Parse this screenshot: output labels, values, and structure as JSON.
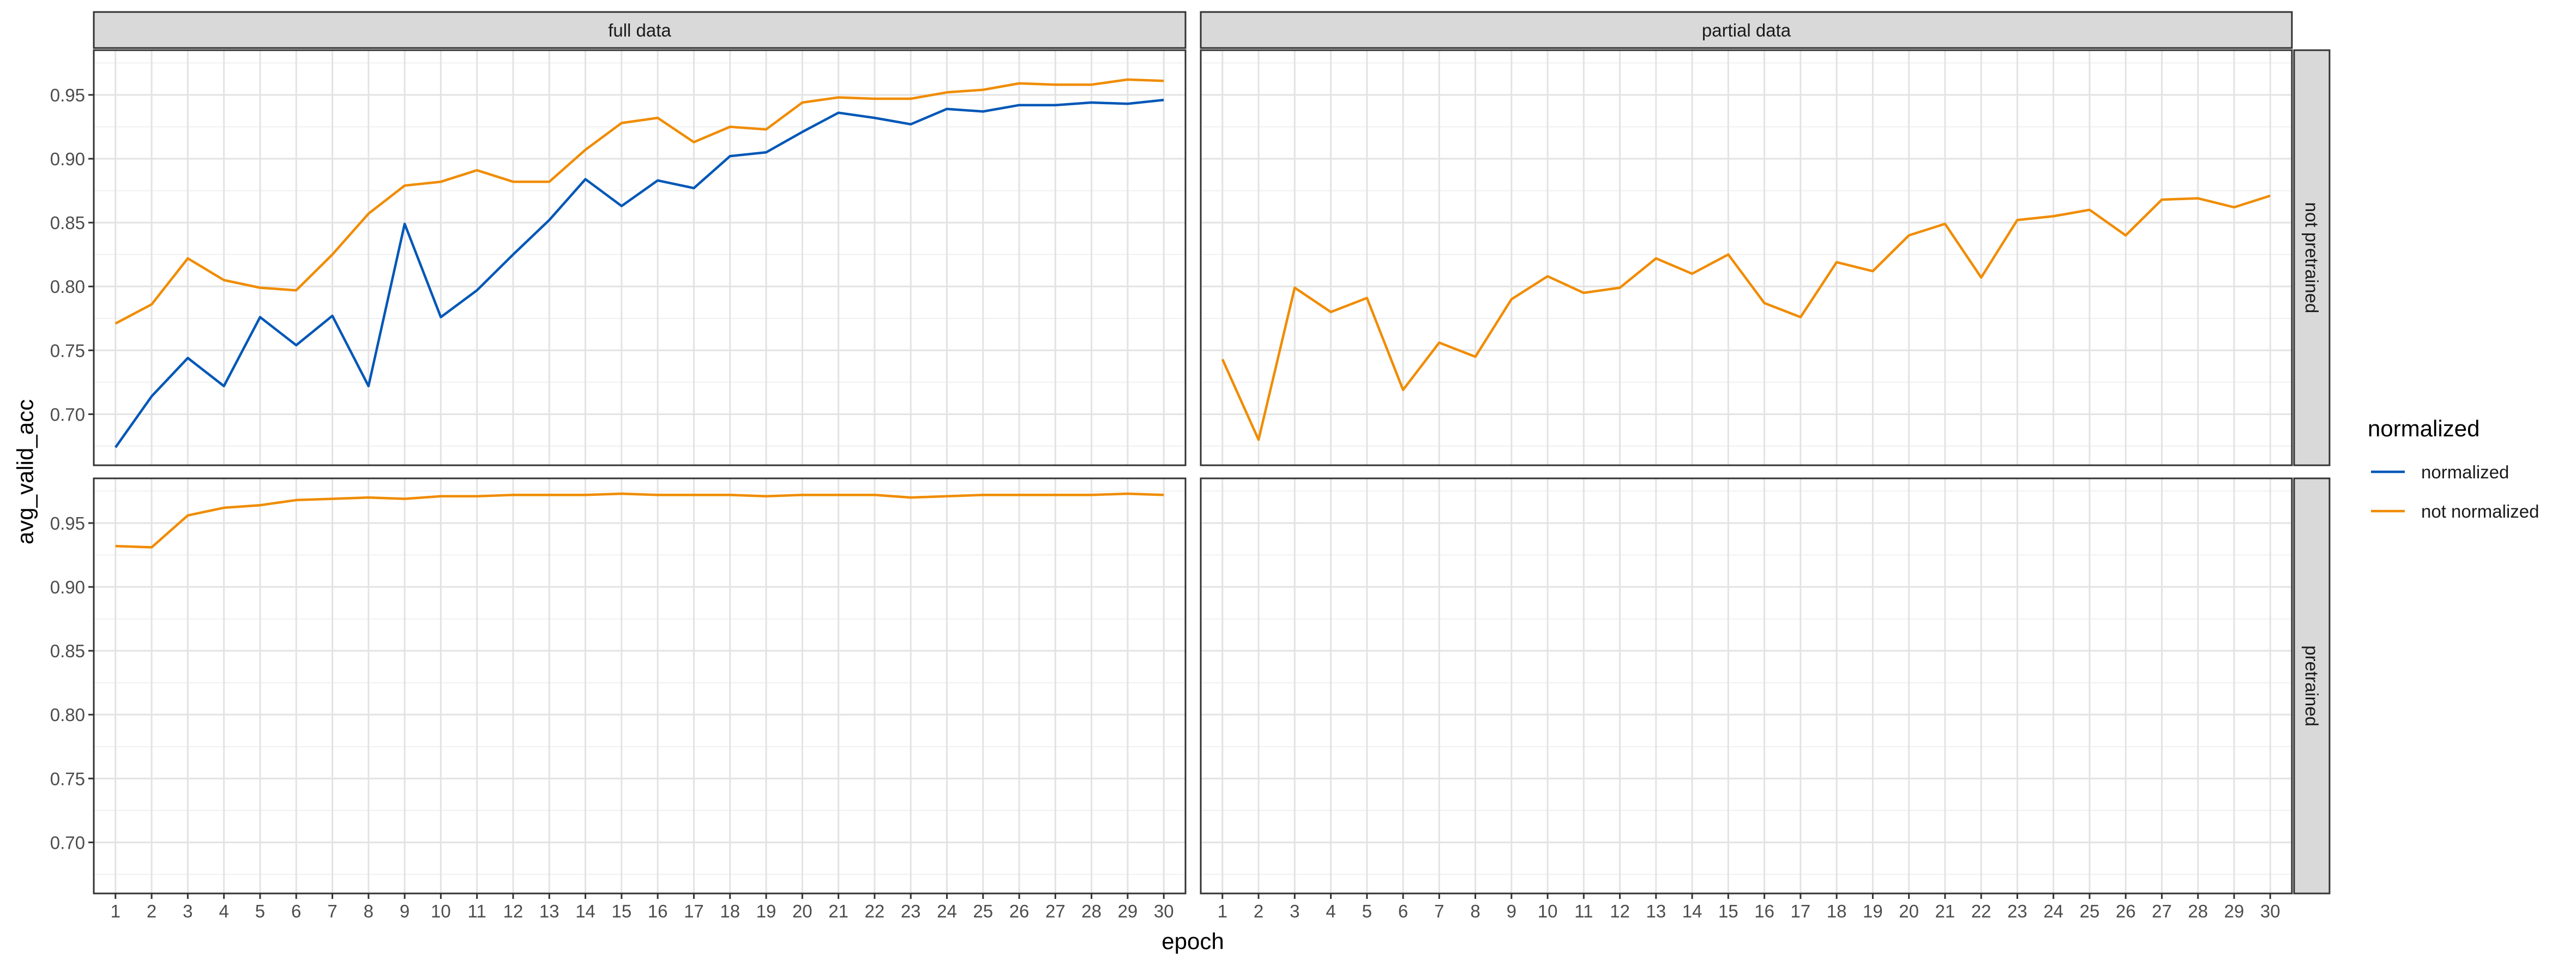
{
  "chart_data": {
    "type": "line",
    "xlabel": "epoch",
    "ylabel": "avg_valid_acc",
    "x_ticks": [
      1,
      2,
      3,
      4,
      5,
      6,
      7,
      8,
      9,
      10,
      11,
      12,
      13,
      14,
      15,
      16,
      17,
      18,
      19,
      20,
      21,
      22,
      23,
      24,
      25,
      26,
      27,
      28,
      29,
      30
    ],
    "y_ticks": [
      0.7,
      0.75,
      0.8,
      0.85,
      0.9,
      0.95
    ],
    "xlim": [
      0.4,
      30.6
    ],
    "ylim": [
      0.66,
      0.985
    ],
    "grid": true,
    "legend": {
      "title": "normalized",
      "position": "right",
      "entries": [
        {
          "key": "normalized",
          "label": "normalized",
          "color": "#0057b7"
        },
        {
          "key": "not_normalized",
          "label": "not normalized",
          "color": "#f08c00"
        }
      ]
    },
    "facet_columns": [
      "full data",
      "partial data"
    ],
    "facet_rows": [
      "not pretrained",
      "pretrained"
    ],
    "panels": [
      {
        "col": 0,
        "row": 0,
        "series": [
          {
            "key": "normalized",
            "values": [
              0.674,
              0.714,
              0.744,
              0.722,
              0.776,
              0.754,
              0.777,
              0.722,
              0.849,
              0.776,
              0.797,
              0.825,
              0.852,
              0.884,
              0.863,
              0.883,
              0.877,
              0.902,
              0.905,
              0.921,
              0.936,
              0.932,
              0.927,
              0.939,
              0.937,
              0.942,
              0.942,
              0.944,
              0.943,
              0.946
            ]
          },
          {
            "key": "not_normalized",
            "values": [
              0.771,
              0.786,
              0.822,
              0.805,
              0.799,
              0.797,
              0.825,
              0.857,
              0.879,
              0.882,
              0.891,
              0.882,
              0.882,
              0.907,
              0.928,
              0.932,
              0.913,
              0.925,
              0.923,
              0.944,
              0.948,
              0.947,
              0.947,
              0.952,
              0.954,
              0.959,
              0.958,
              0.958,
              0.962,
              0.961
            ]
          }
        ]
      },
      {
        "col": 1,
        "row": 0,
        "series": [
          {
            "key": "not_normalized",
            "values": [
              0.743,
              0.68,
              0.799,
              0.78,
              0.791,
              0.719,
              0.756,
              0.745,
              0.79,
              0.808,
              0.795,
              0.799,
              0.822,
              0.81,
              0.825,
              0.787,
              0.776,
              0.819,
              0.812,
              0.84,
              0.849,
              0.807,
              0.852,
              0.855,
              0.86,
              0.84,
              0.868,
              0.869,
              0.862,
              0.871
            ]
          }
        ]
      },
      {
        "col": 0,
        "row": 1,
        "series": [
          {
            "key": "not_normalized",
            "values": [
              0.932,
              0.931,
              0.956,
              0.962,
              0.964,
              0.968,
              0.969,
              0.97,
              0.969,
              0.971,
              0.971,
              0.972,
              0.972,
              0.972,
              0.973,
              0.972,
              0.972,
              0.972,
              0.971,
              0.972,
              0.972,
              0.972,
              0.97,
              0.971,
              0.972,
              0.972,
              0.972,
              0.972,
              0.973,
              0.972
            ]
          }
        ]
      },
      {
        "col": 1,
        "row": 1,
        "series": []
      }
    ]
  }
}
